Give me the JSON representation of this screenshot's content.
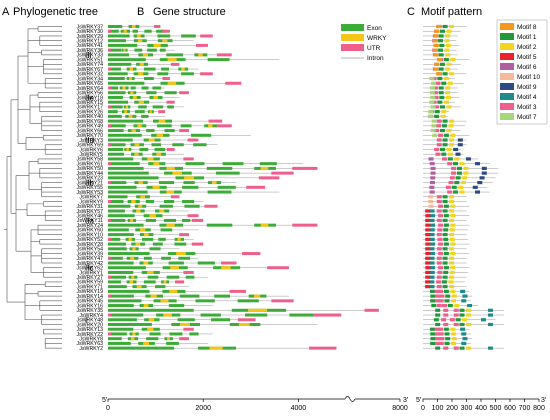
{
  "panels": {
    "a": {
      "letter": "A",
      "title": "Phylogenetic tree"
    },
    "b": {
      "letter": "B",
      "title": "Gene structure"
    },
    "c": {
      "letter": "C",
      "title": "Motif pattern"
    }
  },
  "genes": [
    "JsWRKY37",
    "JsWRKY30",
    "JsWRKY29",
    "JsWRKY12",
    "JsWRKY41",
    "JsWRKY36",
    "JsWRKY33",
    "JsWRKY51",
    "JsWRKY74",
    "JsWRKY67",
    "JsWRKY32",
    "JsWRKY34",
    "JsWRKY65",
    "JsWRKY64",
    "JsWRKY56",
    "JsWRKY18",
    "JsWRKY15",
    "JsWRKY17",
    "JsWRKY26",
    "JsWRKY40",
    "JsWRKY68",
    "JsWRKY49",
    "JsWRKY66",
    "JsWRKY70",
    "JsWRKY3",
    "JsWRKY69",
    "JsWRKY6",
    "JsWRKY5",
    "JsWRKY58",
    "JsWRKY61",
    "JsWRKY50",
    "JsWRKY44",
    "JsWRKY23",
    "JsWRKY21",
    "JsWRKY55",
    "JsWRKY53",
    "JsWRKY7",
    "JsWRKY9",
    "JsWRKY31",
    "JsWRKY57",
    "JsWRKY46",
    "JsWRKY11",
    "JsWRKY24",
    "JsWRKY60",
    "JsWRKY10",
    "JsWRKY52",
    "JsWRKY28",
    "JsWRKY54",
    "JsWRKY39",
    "JsWRKY47",
    "JsWRKY42",
    "JsWRKY62",
    "JsWRKY1",
    "JsWRKY27",
    "JsWRKY59",
    "JsWRKY71",
    "JsWRKY19",
    "JsWRKY14",
    "JsWRKY45",
    "JsWRKY16",
    "JsWRKY35",
    "JsWRKY4",
    "JsWRKY48",
    "JsWRKY20",
    "JsWRKY13",
    "JsWRKY22",
    "JsWRKY8",
    "JsWRKY63",
    "JsWRKY2"
  ],
  "clades": [
    "III",
    "IIe",
    "IId",
    "IIb",
    "IIa",
    "IIc",
    "I"
  ],
  "gene_structure": {
    "legend": [
      {
        "label": "Exon",
        "color": "#3cab38"
      },
      {
        "label": "WRKY",
        "color": "#f5c518"
      },
      {
        "label": "UTR",
        "color": "#ee5f8b"
      },
      {
        "label": "Intron",
        "color": "#9a9a9a"
      }
    ],
    "axis": {
      "ticks": [
        "0",
        "2000",
        "4000",
        "8000"
      ],
      "start": "5'",
      "end": "3'"
    }
  },
  "motif_pattern": {
    "legend": [
      {
        "label": "Motif 8",
        "color": "#f39a1e"
      },
      {
        "label": "Motif 1",
        "color": "#1f9a3a"
      },
      {
        "label": "Motif 2",
        "color": "#f2d51c"
      },
      {
        "label": "Motif 5",
        "color": "#e8232b"
      },
      {
        "label": "Motif 6",
        "color": "#b05fa0"
      },
      {
        "label": "Motif 10",
        "color": "#f6b99a"
      },
      {
        "label": "Motif 9",
        "color": "#2c4a86"
      },
      {
        "label": "Motif 4",
        "color": "#1d8a8c"
      },
      {
        "label": "Motif 3",
        "color": "#ee5f8b"
      },
      {
        "label": "Motif 7",
        "color": "#a8d67e"
      }
    ],
    "axis": {
      "ticks": [
        "0",
        "100",
        "200",
        "300",
        "400",
        "500",
        "600",
        "700",
        "800"
      ],
      "start": "5'",
      "end": "3'"
    }
  },
  "colors": {
    "exon": "#3cab38",
    "wrky": "#f5c518",
    "utr": "#ee5f8b",
    "intron": "#9a9a9a",
    "tree": "#555555"
  }
}
